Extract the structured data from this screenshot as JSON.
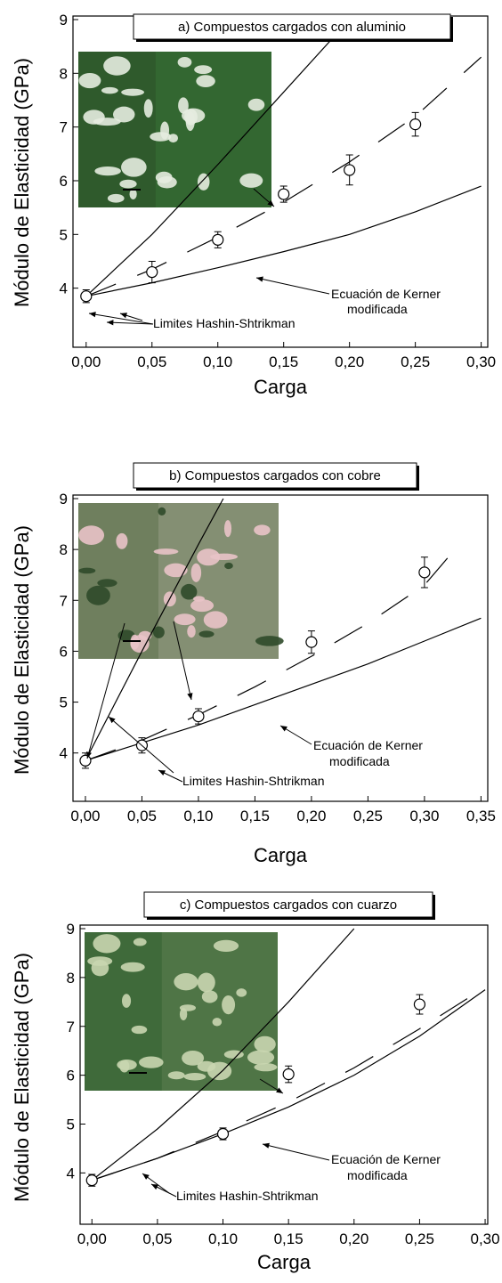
{
  "chart_data": [
    {
      "type": "scatter",
      "title": "a) Compuestos cargados con aluminio",
      "x_label": "Carga",
      "y_label": "Módulo de Elasticidad (GPa)",
      "annotations": [
        "Ecuación de Kerner",
        "modificada",
        "Limites Hashin-Shtrikman"
      ],
      "xlim": [
        -0.01,
        0.305
      ],
      "ylim": [
        2.9,
        9
      ],
      "xticks": [
        {
          "value": 0,
          "label": "0,00"
        },
        {
          "value": 0.05,
          "label": "0,05"
        },
        {
          "value": 0.1,
          "label": "0,10"
        },
        {
          "value": 0.15,
          "label": "0,15"
        },
        {
          "value": 0.2,
          "label": "0,20"
        },
        {
          "value": 0.25,
          "label": "0,25"
        },
        {
          "value": 0.3,
          "label": "0,30"
        }
      ],
      "yticks": [
        4,
        5,
        6,
        7,
        8,
        9
      ],
      "points": {
        "x": [
          0,
          0.05,
          0.1,
          0.15,
          0.2,
          0.25
        ],
        "values": [
          3.85,
          4.3,
          4.9,
          5.75,
          6.2,
          7.05
        ],
        "errors": [
          0.12,
          0.2,
          0.15,
          0.15,
          0.28,
          0.22
        ]
      },
      "curves": [
        {
          "dashed": false,
          "x": [
            0,
            0.05,
            0.1,
            0.15,
            0.2
          ],
          "values": [
            3.85,
            5.0,
            6.3,
            7.65,
            9.0
          ]
        },
        {
          "dashed": false,
          "x": [
            0,
            0.05,
            0.1,
            0.15,
            0.2,
            0.25,
            0.3
          ],
          "values": [
            3.85,
            4.1,
            4.38,
            4.68,
            5.0,
            5.42,
            5.9
          ]
        },
        {
          "dashed": true,
          "x": [
            0,
            0.05,
            0.1,
            0.15,
            0.2,
            0.25,
            0.3
          ],
          "values": [
            3.85,
            4.35,
            4.95,
            5.6,
            6.35,
            7.2,
            8.3
          ]
        }
      ]
    },
    {
      "type": "scatter",
      "title": "b) Compuestos cargados con cobre",
      "x_label": "Carga",
      "y_label": "Módulo de Elasticidad (GPa)",
      "annotations": [
        "Ecuación de Kerner",
        "modificada",
        "Limites Hashin-Shtrikman"
      ],
      "xlim": [
        -0.011,
        0.356
      ],
      "ylim": [
        3.05,
        9
      ],
      "xticks": [
        {
          "value": 0,
          "label": "0,00"
        },
        {
          "value": 0.05,
          "label": "0,05"
        },
        {
          "value": 0.1,
          "label": "0,10"
        },
        {
          "value": 0.15,
          "label": "0,15"
        },
        {
          "value": 0.2,
          "label": "0,20"
        },
        {
          "value": 0.25,
          "label": "0,25"
        },
        {
          "value": 0.3,
          "label": "0,30"
        },
        {
          "value": 0.35,
          "label": "0,35"
        }
      ],
      "yticks": [
        4,
        5,
        6,
        7,
        8,
        9
      ],
      "points": {
        "x": [
          0,
          0.05,
          0.1,
          0.2,
          0.3
        ],
        "values": [
          3.85,
          4.15,
          4.72,
          6.18,
          7.55
        ],
        "errors": [
          0.15,
          0.15,
          0.15,
          0.22,
          0.3
        ]
      },
      "curves": [
        {
          "dashed": false,
          "x": [
            0,
            0.05,
            0.1,
            0.122
          ],
          "values": [
            3.85,
            6.0,
            8.1,
            9.0
          ]
        },
        {
          "dashed": false,
          "x": [
            0,
            0.05,
            0.1,
            0.15,
            0.2,
            0.25,
            0.3,
            0.35
          ],
          "values": [
            3.85,
            4.2,
            4.55,
            4.95,
            5.35,
            5.75,
            6.2,
            6.65
          ]
        },
        {
          "dashed": true,
          "x": [
            0,
            0.05,
            0.1,
            0.15,
            0.2,
            0.25,
            0.3,
            0.325
          ],
          "values": [
            3.85,
            4.25,
            4.75,
            5.3,
            5.9,
            6.55,
            7.3,
            7.95
          ]
        }
      ]
    },
    {
      "type": "scatter",
      "title": "c) Compuestos cargados con cuarzo",
      "x_label": "Carga",
      "y_label": "Módulo de Elasticidad (GPa)",
      "annotations": [
        "Ecuación de Kerner",
        "modificada",
        "Limites Hashin-Shtrikman"
      ],
      "xlim": [
        -0.009,
        0.302
      ],
      "ylim": [
        2.95,
        9
      ],
      "xticks": [
        {
          "value": 0,
          "label": "0,00"
        },
        {
          "value": 0.05,
          "label": "0,05"
        },
        {
          "value": 0.1,
          "label": "0,10"
        },
        {
          "value": 0.15,
          "label": "0,15"
        },
        {
          "value": 0.2,
          "label": "0,20"
        },
        {
          "value": 0.25,
          "label": "0,25"
        },
        {
          "value": 0.3,
          "label": "0,30"
        }
      ],
      "yticks": [
        4,
        5,
        6,
        7,
        8,
        9
      ],
      "points": {
        "x": [
          0,
          0.1,
          0.15,
          0.25
        ],
        "values": [
          3.85,
          4.8,
          6.02,
          7.45
        ],
        "errors": [
          0.12,
          0.12,
          0.17,
          0.2
        ]
      },
      "curves": [
        {
          "dashed": false,
          "x": [
            0,
            0.05,
            0.1,
            0.15,
            0.2
          ],
          "values": [
            3.85,
            4.9,
            6.1,
            7.5,
            9.0
          ]
        },
        {
          "dashed": false,
          "x": [
            0,
            0.05,
            0.1,
            0.15,
            0.2,
            0.25,
            0.3
          ],
          "values": [
            3.85,
            4.3,
            4.8,
            5.35,
            6.0,
            6.8,
            7.75
          ]
        },
        {
          "dashed": true,
          "x": [
            0,
            0.05,
            0.1,
            0.15,
            0.2,
            0.25,
            0.3
          ],
          "values": [
            3.85,
            4.3,
            4.85,
            5.45,
            6.15,
            6.95,
            7.8
          ]
        }
      ]
    }
  ]
}
